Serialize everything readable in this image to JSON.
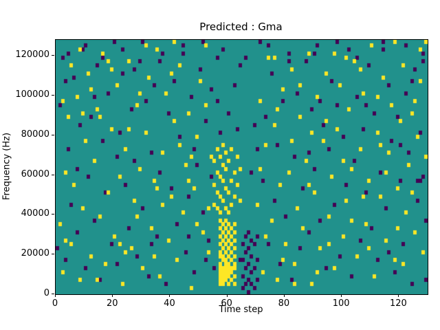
{
  "chart_data": {
    "type": "heatmap",
    "title": "Predicted : Gma",
    "xlabel": "Time step",
    "ylabel": "Frequency (Hz)",
    "xlim": [
      0,
      130
    ],
    "ylim": [
      0,
      128000
    ],
    "x_ticks": [
      0,
      20,
      40,
      60,
      80,
      100,
      120
    ],
    "y_ticks": [
      0,
      20000,
      40000,
      60000,
      80000,
      100000,
      120000
    ],
    "grid": false,
    "legend": "none",
    "colors": {
      "background": "#21918c",
      "high": "#fde725",
      "low": "#440154"
    },
    "cell": {
      "time_steps": 130,
      "freq_bins": 64,
      "freq_bin_hz": 2000
    },
    "yellow_cells": [
      [
        1,
        17
      ],
      [
        2,
        5
      ],
      [
        3,
        30
      ],
      [
        4,
        44
      ],
      [
        5,
        12
      ],
      [
        6,
        27
      ],
      [
        7,
        49
      ],
      [
        8,
        3
      ],
      [
        9,
        21
      ],
      [
        10,
        38
      ],
      [
        11,
        55
      ],
      [
        12,
        9
      ],
      [
        13,
        33
      ],
      [
        14,
        46
      ],
      [
        15,
        19
      ],
      [
        16,
        60
      ],
      [
        17,
        7
      ],
      [
        18,
        25
      ],
      [
        19,
        41
      ],
      [
        20,
        14
      ],
      [
        21,
        52
      ],
      [
        22,
        29
      ],
      [
        23,
        2
      ],
      [
        24,
        36
      ],
      [
        25,
        58
      ],
      [
        26,
        11
      ],
      [
        27,
        23
      ],
      [
        28,
        47
      ],
      [
        29,
        31
      ],
      [
        30,
        6
      ],
      [
        31,
        40
      ],
      [
        32,
        54
      ],
      [
        33,
        16
      ],
      [
        34,
        28
      ],
      [
        35,
        61
      ],
      [
        36,
        4
      ],
      [
        37,
        35
      ],
      [
        38,
        50
      ],
      [
        39,
        13
      ],
      [
        40,
        24
      ],
      [
        41,
        43
      ],
      [
        42,
        8
      ],
      [
        43,
        57
      ],
      [
        44,
        20
      ],
      [
        45,
        32
      ],
      [
        46,
        45
      ],
      [
        47,
        1
      ],
      [
        48,
        26
      ],
      [
        49,
        39
      ],
      [
        50,
        53
      ],
      [
        51,
        15
      ],
      [
        52,
        62
      ],
      [
        53,
        10
      ],
      [
        54,
        34
      ],
      [
        70,
        22
      ],
      [
        71,
        48
      ],
      [
        72,
        5
      ],
      [
        73,
        37
      ],
      [
        74,
        59
      ],
      [
        75,
        18
      ],
      [
        76,
        42
      ],
      [
        77,
        3
      ],
      [
        78,
        27
      ],
      [
        79,
        51
      ],
      [
        80,
        12
      ],
      [
        81,
        30
      ],
      [
        82,
        56
      ],
      [
        83,
        7
      ],
      [
        84,
        21
      ],
      [
        85,
        44
      ],
      [
        86,
        16
      ],
      [
        87,
        33
      ],
      [
        88,
        60
      ],
      [
        89,
        2
      ],
      [
        90,
        25
      ],
      [
        91,
        49
      ],
      [
        92,
        11
      ],
      [
        93,
        38
      ],
      [
        94,
        55
      ],
      [
        95,
        19
      ],
      [
        96,
        29
      ],
      [
        97,
        6
      ],
      [
        98,
        41
      ],
      [
        99,
        52
      ],
      [
        100,
        14
      ],
      [
        101,
        23
      ],
      [
        102,
        46
      ],
      [
        103,
        31
      ],
      [
        104,
        58
      ],
      [
        105,
        9
      ],
      [
        106,
        36
      ],
      [
        107,
        50
      ],
      [
        108,
        17
      ],
      [
        109,
        28
      ],
      [
        110,
        62
      ],
      [
        111,
        4
      ],
      [
        112,
        40
      ],
      [
        113,
        24
      ],
      [
        114,
        54
      ],
      [
        115,
        13
      ],
      [
        116,
        35
      ],
      [
        117,
        47
      ],
      [
        118,
        8
      ],
      [
        119,
        26
      ],
      [
        120,
        43
      ],
      [
        121,
        57
      ],
      [
        122,
        20
      ],
      [
        123,
        32
      ],
      [
        124,
        45
      ],
      [
        125,
        15
      ],
      [
        126,
        39
      ],
      [
        127,
        61
      ],
      [
        128,
        10
      ],
      [
        129,
        34
      ],
      [
        2,
        48
      ],
      [
        5,
        57
      ],
      [
        8,
        61
      ],
      [
        12,
        51
      ],
      [
        15,
        44
      ],
      [
        18,
        58
      ],
      [
        22,
        12
      ],
      [
        25,
        41
      ],
      [
        28,
        19
      ],
      [
        31,
        62
      ],
      [
        34,
        9
      ],
      [
        37,
        22
      ],
      [
        40,
        55
      ],
      [
        43,
        37
      ],
      [
        46,
        28
      ],
      [
        49,
        17
      ],
      [
        52,
        47
      ],
      [
        73,
        14
      ],
      [
        76,
        59
      ],
      [
        79,
        8
      ],
      [
        82,
        38
      ],
      [
        85,
        52
      ],
      [
        88,
        27
      ],
      [
        91,
        5
      ],
      [
        94,
        43
      ],
      [
        97,
        60
      ],
      [
        100,
        33
      ],
      [
        103,
        18
      ],
      [
        106,
        56
      ],
      [
        109,
        11
      ],
      [
        112,
        49
      ],
      [
        115,
        30
      ],
      [
        118,
        63
      ],
      [
        121,
        7
      ],
      [
        124,
        25
      ],
      [
        127,
        53
      ],
      [
        3,
        13
      ],
      [
        9,
        45
      ],
      [
        14,
        3
      ],
      [
        19,
        56
      ],
      [
        24,
        10
      ],
      [
        29,
        50
      ],
      [
        35,
        26
      ],
      [
        41,
        63
      ],
      [
        47,
        34
      ],
      [
        53,
        21
      ],
      [
        71,
        31
      ],
      [
        77,
        46
      ],
      [
        83,
        2
      ],
      [
        89,
        40
      ],
      [
        95,
        12
      ],
      [
        101,
        59
      ],
      [
        107,
        24
      ],
      [
        113,
        37
      ],
      [
        119,
        16
      ],
      [
        125,
        48
      ],
      [
        129,
        63
      ],
      [
        57,
        2
      ],
      [
        57,
        3
      ],
      [
        57,
        4
      ],
      [
        57,
        5
      ],
      [
        57,
        6
      ],
      [
        57,
        7
      ],
      [
        57,
        9
      ],
      [
        57,
        10
      ],
      [
        57,
        12
      ],
      [
        57,
        14
      ],
      [
        57,
        16
      ],
      [
        57,
        18
      ],
      [
        58,
        2
      ],
      [
        58,
        3
      ],
      [
        58,
        4
      ],
      [
        58,
        5
      ],
      [
        58,
        6
      ],
      [
        58,
        8
      ],
      [
        58,
        9
      ],
      [
        58,
        11
      ],
      [
        58,
        13
      ],
      [
        58,
        15
      ],
      [
        58,
        17
      ],
      [
        59,
        3
      ],
      [
        59,
        4
      ],
      [
        59,
        5
      ],
      [
        59,
        6
      ],
      [
        59,
        7
      ],
      [
        59,
        8
      ],
      [
        59,
        10
      ],
      [
        59,
        12
      ],
      [
        59,
        14
      ],
      [
        59,
        16
      ],
      [
        59,
        18
      ],
      [
        60,
        2
      ],
      [
        60,
        4
      ],
      [
        60,
        5
      ],
      [
        60,
        6
      ],
      [
        60,
        7
      ],
      [
        60,
        9
      ],
      [
        60,
        11
      ],
      [
        60,
        13
      ],
      [
        60,
        15
      ],
      [
        60,
        17
      ],
      [
        61,
        3
      ],
      [
        61,
        5
      ],
      [
        61,
        6
      ],
      [
        61,
        8
      ],
      [
        61,
        10
      ],
      [
        61,
        12
      ],
      [
        61,
        14
      ],
      [
        61,
        16
      ],
      [
        62,
        2
      ],
      [
        62,
        4
      ],
      [
        62,
        6
      ],
      [
        62,
        7
      ],
      [
        62,
        9
      ],
      [
        62,
        11
      ],
      [
        62,
        13
      ],
      [
        62,
        15
      ],
      [
        62,
        17
      ],
      [
        55,
        22
      ],
      [
        55,
        27
      ],
      [
        55,
        33
      ],
      [
        56,
        21
      ],
      [
        56,
        25
      ],
      [
        56,
        30
      ],
      [
        56,
        36
      ],
      [
        57,
        20
      ],
      [
        57,
        24
      ],
      [
        57,
        29
      ],
      [
        57,
        34
      ],
      [
        58,
        23
      ],
      [
        58,
        28
      ],
      [
        58,
        32
      ],
      [
        58,
        37
      ],
      [
        59,
        21
      ],
      [
        59,
        26
      ],
      [
        59,
        31
      ],
      [
        59,
        35
      ],
      [
        60,
        20
      ],
      [
        60,
        25
      ],
      [
        60,
        33
      ],
      [
        61,
        22
      ],
      [
        61,
        28
      ],
      [
        61,
        36
      ],
      [
        62,
        24
      ],
      [
        62,
        30
      ],
      [
        63,
        27
      ],
      [
        63,
        34
      ],
      [
        64,
        23
      ],
      [
        64,
        31
      ]
    ],
    "purple_cells": [
      [
        0,
        11
      ],
      [
        1,
        47
      ],
      [
        2,
        59
      ],
      [
        3,
        8
      ],
      [
        4,
        36
      ],
      [
        5,
        22
      ],
      [
        6,
        54
      ],
      [
        7,
        15
      ],
      [
        8,
        42
      ],
      [
        9,
        61
      ],
      [
        10,
        6
      ],
      [
        11,
        29
      ],
      [
        12,
        44
      ],
      [
        13,
        18
      ],
      [
        14,
        57
      ],
      [
        15,
        3
      ],
      [
        16,
        38
      ],
      [
        17,
        25
      ],
      [
        18,
        50
      ],
      [
        19,
        12
      ],
      [
        20,
        63
      ],
      [
        21,
        7
      ],
      [
        22,
        40
      ],
      [
        23,
        55
      ],
      [
        24,
        27
      ],
      [
        25,
        16
      ],
      [
        26,
        46
      ],
      [
        27,
        33
      ],
      [
        28,
        9
      ],
      [
        29,
        58
      ],
      [
        30,
        21
      ],
      [
        31,
        48
      ],
      [
        32,
        4
      ],
      [
        33,
        35
      ],
      [
        34,
        52
      ],
      [
        35,
        14
      ],
      [
        36,
        30
      ],
      [
        37,
        60
      ],
      [
        38,
        2
      ],
      [
        39,
        45
      ],
      [
        40,
        26
      ],
      [
        41,
        53
      ],
      [
        42,
        17
      ],
      [
        43,
        39
      ],
      [
        44,
        62
      ],
      [
        45,
        10
      ],
      [
        46,
        24
      ],
      [
        47,
        49
      ],
      [
        48,
        5
      ],
      [
        49,
        32
      ],
      [
        50,
        56
      ],
      [
        51,
        20
      ],
      [
        52,
        43
      ],
      [
        53,
        13
      ],
      [
        54,
        51
      ],
      [
        55,
        6
      ],
      [
        56,
        59
      ],
      [
        63,
        41
      ],
      [
        64,
        8
      ],
      [
        71,
        63
      ],
      [
        72,
        28
      ],
      [
        73,
        44
      ],
      [
        74,
        12
      ],
      [
        75,
        55
      ],
      [
        76,
        23
      ],
      [
        77,
        37
      ],
      [
        78,
        7
      ],
      [
        79,
        48
      ],
      [
        80,
        19
      ],
      [
        81,
        60
      ],
      [
        82,
        3
      ],
      [
        83,
        34
      ],
      [
        84,
        50
      ],
      [
        85,
        11
      ],
      [
        86,
        26
      ],
      [
        87,
        58
      ],
      [
        88,
        15
      ],
      [
        89,
        46
      ],
      [
        90,
        31
      ],
      [
        91,
        62
      ],
      [
        92,
        18
      ],
      [
        93,
        42
      ],
      [
        94,
        6
      ],
      [
        95,
        36
      ],
      [
        96,
        53
      ],
      [
        97,
        22
      ],
      [
        98,
        47
      ],
      [
        99,
        9
      ],
      [
        100,
        39
      ],
      [
        101,
        27
      ],
      [
        102,
        61
      ],
      [
        103,
        4
      ],
      [
        104,
        33
      ],
      [
        105,
        49
      ],
      [
        106,
        13
      ],
      [
        107,
        41
      ],
      [
        108,
        25
      ],
      [
        109,
        57
      ],
      [
        110,
        16
      ],
      [
        111,
        45
      ],
      [
        112,
        8
      ],
      [
        113,
        30
      ],
      [
        114,
        63
      ],
      [
        115,
        21
      ],
      [
        116,
        52
      ],
      [
        117,
        38
      ],
      [
        118,
        5
      ],
      [
        119,
        44
      ],
      [
        120,
        28
      ],
      [
        121,
        12
      ],
      [
        122,
        50
      ],
      [
        123,
        35
      ],
      [
        124,
        2
      ],
      [
        125,
        56
      ],
      [
        126,
        23
      ],
      [
        127,
        40
      ],
      [
        128,
        60
      ],
      [
        129,
        18
      ],
      [
        65,
        1
      ],
      [
        65,
        4
      ],
      [
        65,
        8
      ],
      [
        65,
        12
      ],
      [
        66,
        2
      ],
      [
        66,
        6
      ],
      [
        66,
        10
      ],
      [
        66,
        14
      ],
      [
        67,
        0
      ],
      [
        67,
        3
      ],
      [
        67,
        7
      ],
      [
        67,
        11
      ],
      [
        67,
        15
      ],
      [
        68,
        2
      ],
      [
        68,
        5
      ],
      [
        68,
        9
      ],
      [
        68,
        13
      ],
      [
        69,
        1
      ],
      [
        69,
        6
      ],
      [
        69,
        12
      ],
      [
        70,
        3
      ],
      [
        70,
        8
      ],
      [
        70,
        14
      ],
      [
        4,
        60
      ],
      [
        10,
        62
      ],
      [
        16,
        59
      ],
      [
        23,
        61
      ],
      [
        30,
        63
      ],
      [
        36,
        58
      ],
      [
        44,
        60
      ],
      [
        51,
        63
      ],
      [
        58,
        61
      ],
      [
        66,
        59
      ],
      [
        74,
        62
      ],
      [
        81,
        58
      ],
      [
        90,
        60
      ],
      [
        98,
        63
      ],
      [
        105,
        59
      ],
      [
        114,
        61
      ],
      [
        122,
        62
      ],
      [
        128,
        58
      ],
      [
        57,
        40
      ],
      [
        60,
        45
      ],
      [
        62,
        52
      ],
      [
        64,
        57
      ],
      [
        68,
        30
      ],
      [
        69,
        42
      ],
      [
        70,
        36
      ],
      [
        54,
        29
      ],
      [
        56,
        48
      ],
      [
        48,
        36
      ],
      [
        33,
        12
      ],
      [
        27,
        56
      ],
      [
        21,
        34
      ],
      [
        13,
        49
      ],
      [
        7,
        31
      ],
      [
        3,
        53
      ],
      [
        46,
        14
      ],
      [
        52,
        8
      ],
      [
        88,
        35
      ],
      [
        92,
        48
      ],
      [
        108,
        47
      ],
      [
        116,
        10
      ],
      [
        120,
        37
      ],
      [
        124,
        53
      ],
      [
        129,
        3
      ],
      [
        126,
        28
      ],
      [
        127,
        28
      ],
      [
        128,
        29
      ]
    ]
  }
}
